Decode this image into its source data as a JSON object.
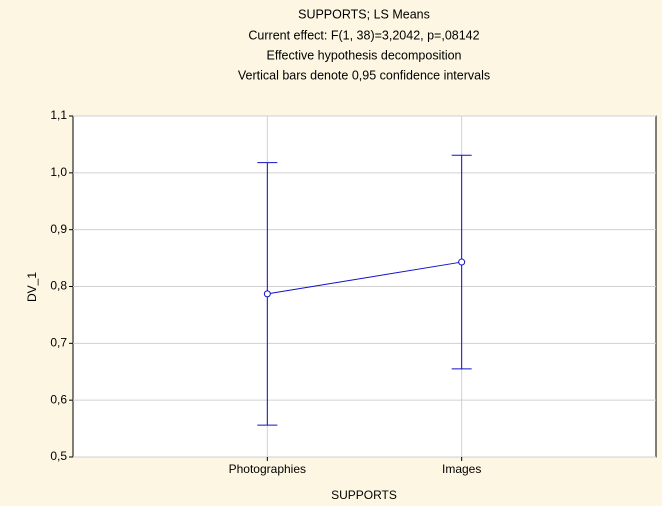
{
  "chart_data": {
    "type": "line",
    "title": "SUPPORTS; LS Means",
    "subtitle": [
      "Current effect: F(1, 38)=3,2042, p=,08142",
      "Effective hypothesis decomposition",
      "Vertical bars denote 0,95 confidence intervals"
    ],
    "xlabel": "SUPPORTS",
    "ylabel": "DV_1",
    "categories": [
      "Photographies",
      "Images"
    ],
    "values": [
      0.787,
      0.843
    ],
    "errors": [
      0.231,
      0.188
    ],
    "color": "#1010c8",
    "ylim": [
      0.5,
      1.1
    ],
    "yticks": [
      {
        "value": 0.5,
        "label": "0,5"
      },
      {
        "value": 0.6,
        "label": "0,6"
      },
      {
        "value": 0.7,
        "label": "0,7"
      },
      {
        "value": 0.8,
        "label": "0,8"
      },
      {
        "value": 0.9,
        "label": "0,9"
      },
      {
        "value": 1.0,
        "label": "1,0"
      },
      {
        "value": 1.1,
        "label": "1,1"
      }
    ],
    "grid": true
  }
}
